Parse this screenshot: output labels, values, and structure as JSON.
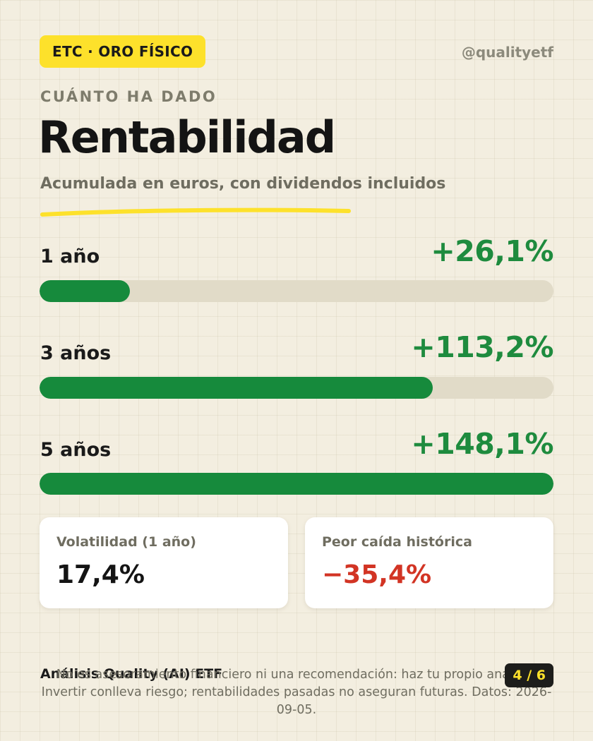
{
  "header": {
    "tag": "ETC · ORO FÍSICO",
    "handle": "@qualityetf"
  },
  "hero": {
    "eyebrow": "CUÁNTO HA DADO",
    "title": "Rentabilidad",
    "subtitle": "Acumulada en euros, con dividendos incluidos"
  },
  "returns": [
    {
      "label": "1 año",
      "value": "+26,1%",
      "fill_fraction": 0.176
    },
    {
      "label": "3 años",
      "value": "+113,2%",
      "fill_fraction": 0.765
    },
    {
      "label": "5 años",
      "value": "+148,1%",
      "fill_fraction": 1.0
    }
  ],
  "stats": {
    "volatility": {
      "label": "Volatilidad (1 año)",
      "value": "17,4%"
    },
    "drawdown": {
      "label": "Peor caída histórica",
      "value": "−35,4%"
    }
  },
  "footer": {
    "brand": "Análisis Quality (AI) ETF",
    "disclaimer": "No es asesoramiento financiero ni una recomendación: haz tu propio análisis. Invertir conlleva riesgo; rentabilidades pasadas no aseguran futuras. Datos: 2026-09-05.",
    "page_indicator": "4 / 6"
  },
  "colors": {
    "accent_yellow": "#fde12b",
    "positive_green": "#1e8b3e",
    "bar_green": "#168a3c",
    "negative_red": "#d23424",
    "background": "#f3eee0"
  }
}
